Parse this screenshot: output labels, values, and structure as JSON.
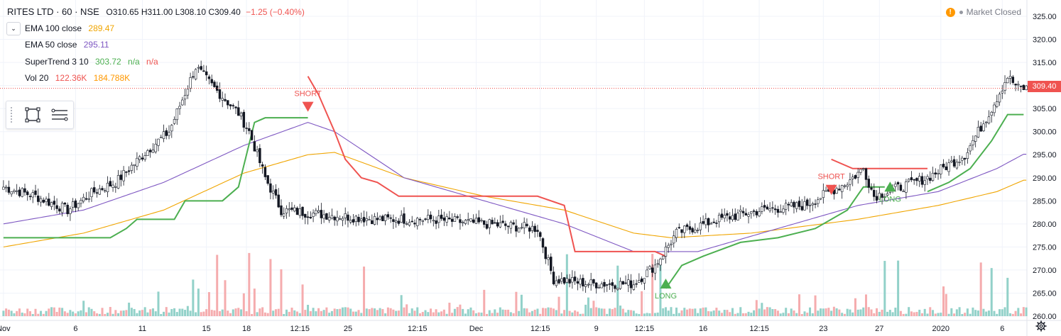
{
  "header": {
    "symbol": "RITES LTD · 60 · NSE",
    "open": "O310.65",
    "high": "H311.00",
    "low": "L308.10",
    "close": "C309.40",
    "change": "−1.25 (−0.40%)"
  },
  "indicators": [
    {
      "label": "EMA 100 close",
      "value": "289.47",
      "color": "#f0a500"
    },
    {
      "label": "EMA 50 close",
      "value": "295.11",
      "color": "#7e57c2"
    },
    {
      "label": "SuperTrend 3 10",
      "value": "303.72",
      "extra": "n/a",
      "extra2": "n/a",
      "color": "#4caf50",
      "extra_color": "#ef5350"
    },
    {
      "label": "Vol 20",
      "value": "122.36K",
      "extra": "184.788K",
      "color": "#ef5350",
      "extra_color": "#ff9800"
    }
  ],
  "market_status": "Market Closed",
  "last_price": "309.40",
  "toolbar": {
    "icons": [
      "rectangle-select-icon",
      "list-lines-icon"
    ]
  },
  "chart_data": {
    "type": "candlestick",
    "title": "",
    "y_axis": {
      "min": 260,
      "max": 327,
      "ticks": [
        "260.00",
        "265.00",
        "270.00",
        "275.00",
        "280.00",
        "285.00",
        "290.00",
        "295.00",
        "300.00",
        "305.00",
        "310.00",
        "315.00",
        "320.00",
        "325.00"
      ]
    },
    "x_axis": {
      "ticks": [
        "Nov",
        "6",
        "11",
        "15",
        "18",
        "12:15",
        "25",
        "12:15",
        "Dec",
        "12:15",
        "9",
        "12:15",
        "16",
        "12:15",
        "23",
        "27",
        "2020",
        "6"
      ]
    },
    "close_series_keypoints": [
      [
        0,
        288
      ],
      [
        12,
        286
      ],
      [
        24,
        283
      ],
      [
        34,
        287
      ],
      [
        42,
        289
      ],
      [
        54,
        296
      ],
      [
        62,
        300
      ],
      [
        72,
        314
      ],
      [
        78,
        310
      ],
      [
        88,
        304
      ],
      [
        92,
        300
      ],
      [
        98,
        290
      ],
      [
        104,
        283
      ],
      [
        120,
        282
      ],
      [
        140,
        281
      ],
      [
        160,
        281
      ],
      [
        180,
        280
      ],
      [
        200,
        279
      ],
      [
        206,
        268
      ],
      [
        220,
        267
      ],
      [
        236,
        267
      ],
      [
        244,
        271
      ],
      [
        252,
        278
      ],
      [
        268,
        281
      ],
      [
        284,
        283
      ],
      [
        300,
        284
      ],
      [
        316,
        289
      ],
      [
        322,
        292
      ],
      [
        326,
        286
      ],
      [
        346,
        290
      ],
      [
        360,
        295
      ],
      [
        370,
        305
      ],
      [
        376,
        312
      ],
      [
        380,
        309.4
      ]
    ],
    "supertrend_segments": [
      {
        "trend": "up",
        "points": [
          [
            0,
            277
          ],
          [
            40,
            277
          ],
          [
            46,
            279
          ],
          [
            50,
            281
          ],
          [
            64,
            281
          ],
          [
            68,
            285
          ],
          [
            82,
            285
          ],
          [
            88,
            288
          ],
          [
            94,
            302
          ],
          [
            98,
            303
          ],
          [
            114,
            303
          ]
        ]
      },
      {
        "trend": "down",
        "points": [
          [
            114,
            312
          ],
          [
            118,
            308
          ],
          [
            124,
            300
          ],
          [
            128,
            294
          ],
          [
            134,
            290
          ],
          [
            140,
            289
          ],
          [
            148,
            286
          ],
          [
            200,
            286
          ],
          [
            210,
            284
          ],
          [
            214,
            274
          ],
          [
            236,
            274
          ],
          [
            244,
            274
          ],
          [
            248,
            273
          ]
        ]
      },
      {
        "trend": "up",
        "points": [
          [
            248,
            266
          ],
          [
            254,
            271
          ],
          [
            262,
            273
          ],
          [
            276,
            276
          ],
          [
            290,
            277
          ],
          [
            304,
            279
          ],
          [
            316,
            283
          ],
          [
            322,
            288
          ],
          [
            330,
            288
          ]
        ]
      },
      {
        "trend": "down",
        "points": [
          [
            310,
            294
          ],
          [
            318,
            292
          ],
          [
            346,
            292
          ]
        ]
      },
      {
        "trend": "up",
        "points": [
          [
            346,
            287
          ],
          [
            354,
            289
          ],
          [
            362,
            292
          ],
          [
            370,
            298
          ],
          [
            376,
            303.7
          ],
          [
            382,
            303.7
          ]
        ]
      }
    ],
    "signals": [
      {
        "type": "SHORT",
        "index": 114
      },
      {
        "type": "LONG",
        "index": 248
      },
      {
        "type": "SHORT",
        "index": 310
      },
      {
        "type": "LONG",
        "index": 332
      }
    ],
    "ema_keypoints": {
      "ema50": [
        [
          0,
          280
        ],
        [
          30,
          283
        ],
        [
          60,
          289
        ],
        [
          90,
          297
        ],
        [
          114,
          302
        ],
        [
          124,
          300
        ],
        [
          150,
          290
        ],
        [
          180,
          285
        ],
        [
          210,
          280
        ],
        [
          236,
          274
        ],
        [
          260,
          274
        ],
        [
          290,
          279
        ],
        [
          320,
          284
        ],
        [
          350,
          287
        ],
        [
          372,
          292
        ],
        [
          382,
          295.11
        ]
      ],
      "ema100": [
        [
          0,
          275
        ],
        [
          30,
          278
        ],
        [
          60,
          283
        ],
        [
          90,
          291
        ],
        [
          114,
          295
        ],
        [
          124,
          295.5
        ],
        [
          150,
          290
        ],
        [
          180,
          286
        ],
        [
          210,
          283
        ],
        [
          236,
          278
        ],
        [
          250,
          277
        ],
        [
          280,
          278
        ],
        [
          320,
          281
        ],
        [
          350,
          284
        ],
        [
          372,
          287
        ],
        [
          382,
          289.47
        ]
      ]
    },
    "volume_colors": {
      "up": "#8ccfc6",
      "down": "#f4a8aa"
    }
  }
}
